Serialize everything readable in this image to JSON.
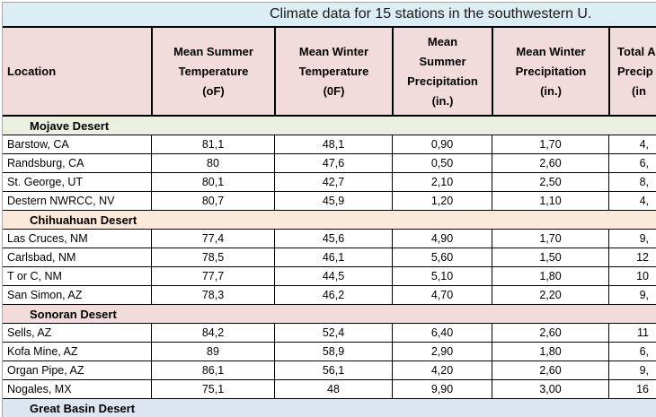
{
  "title": "Climate data for 15 stations in the southwestern U.",
  "colors": {
    "title_bg": "#daeef3",
    "header_bg": "#f2dcdb",
    "gridline_grey": "#a6a6a6",
    "border_black": "#000000",
    "row_bg": "#ffffff"
  },
  "columns": [
    {
      "id": "location",
      "label_lines": [
        "Location"
      ]
    },
    {
      "id": "mean-summer-temp",
      "label_lines": [
        "Mean Summer",
        "Temperature",
        "(oF)"
      ]
    },
    {
      "id": "mean-winter-temp",
      "label_lines": [
        "Mean Winter",
        "Temperature",
        "(0F)"
      ]
    },
    {
      "id": "mean-summer-precip",
      "label_lines": [
        "Mean",
        "Summer",
        "Precipitation",
        "(in.)"
      ]
    },
    {
      "id": "mean-winter-precip",
      "label_lines": [
        "Mean Winter",
        "Precipitation",
        "(in.)"
      ]
    },
    {
      "id": "total-annual-precip-truncated",
      "label_lines": [
        "Total A",
        "Precip",
        "(in"
      ]
    }
  ],
  "groups": [
    {
      "name": "Mojave Desert",
      "color": "#ebf1de",
      "rows": [
        {
          "location": "Barstow, CA",
          "values": [
            "81,1",
            "48,1",
            "0,90",
            "1,70",
            "4,"
          ]
        },
        {
          "location": "Randsburg, CA",
          "values": [
            "80",
            "47,6",
            "0,50",
            "2,60",
            "6,"
          ]
        },
        {
          "location": "St. George, UT",
          "values": [
            "80,1",
            "42,7",
            "2,10",
            "2,50",
            "8,"
          ]
        },
        {
          "location": "Destern NWRCC, NV",
          "values": [
            "80,7",
            "45,9",
            "1,20",
            "1,10",
            "4,"
          ]
        }
      ]
    },
    {
      "name": "Chihuahuan Desert",
      "color": "#fde9d9",
      "rows": [
        {
          "location": "Las Cruces, NM",
          "values": [
            "77,4",
            "45,6",
            "4,90",
            "1,70",
            "9,"
          ]
        },
        {
          "location": "Carlsbad, NM",
          "values": [
            "78,5",
            "46,1",
            "5,60",
            "1,50",
            "12"
          ]
        },
        {
          "location": "T or C, NM",
          "values": [
            "77,7",
            "44,5",
            "5,10",
            "1,80",
            "10"
          ]
        },
        {
          "location": "San Simon, AZ",
          "values": [
            "78,3",
            "46,2",
            "4,70",
            "2,20",
            "9,"
          ]
        }
      ]
    },
    {
      "name": "Sonoran Desert",
      "color": "#f2dcdb",
      "rows": [
        {
          "location": "Sells, AZ",
          "values": [
            "84,2",
            "52,4",
            "6,40",
            "2,60",
            "11"
          ]
        },
        {
          "location": "Kofa Mine, AZ",
          "values": [
            "89",
            "58,9",
            "2,90",
            "1,80",
            "6,"
          ]
        },
        {
          "location": "Organ Pipe, AZ",
          "values": [
            "86,1",
            "56,1",
            "4,20",
            "2,60",
            "9,"
          ]
        },
        {
          "location": "Nogales, MX",
          "values": [
            "75,1",
            "48",
            "9,90",
            "3,00",
            "16"
          ]
        }
      ]
    },
    {
      "name": "Great Basin Desert",
      "color": "#dce6f1",
      "rows": []
    }
  ]
}
